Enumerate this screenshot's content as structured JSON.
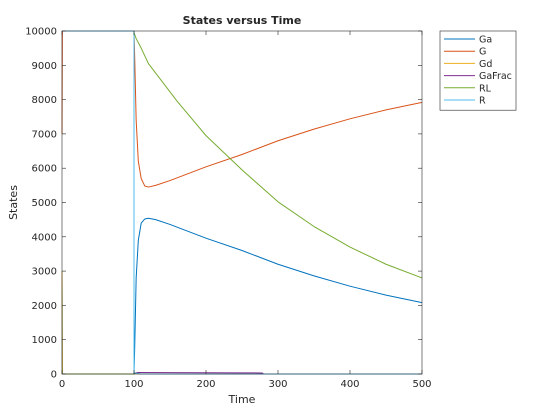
{
  "chart_data": {
    "type": "line",
    "title": "States versus Time",
    "xlabel": "Time",
    "ylabel": "States",
    "xlim": [
      0,
      500
    ],
    "ylim": [
      0,
      10000
    ],
    "xticks": [
      0,
      100,
      200,
      300,
      400,
      500
    ],
    "yticks": [
      0,
      1000,
      2000,
      3000,
      4000,
      5000,
      6000,
      7000,
      8000,
      9000,
      10000
    ],
    "grid": false,
    "legend_position": "top-right-outside",
    "series": [
      {
        "name": "Ga",
        "color": "#0072BD",
        "points": [
          [
            0,
            3000
          ],
          [
            0.5,
            0
          ],
          [
            100,
            0
          ],
          [
            101,
            800
          ],
          [
            103,
            2800
          ],
          [
            106,
            3900
          ],
          [
            110,
            4400
          ],
          [
            115,
            4520
          ],
          [
            120,
            4540
          ],
          [
            130,
            4500
          ],
          [
            150,
            4360
          ],
          [
            200,
            3960
          ],
          [
            250,
            3600
          ],
          [
            300,
            3200
          ],
          [
            350,
            2860
          ],
          [
            400,
            2560
          ],
          [
            450,
            2300
          ],
          [
            500,
            2080
          ]
        ]
      },
      {
        "name": "G",
        "color": "#D95319",
        "points": [
          [
            0,
            7000
          ],
          [
            0.5,
            10000
          ],
          [
            100,
            10000
          ],
          [
            101,
            9200
          ],
          [
            103,
            7400
          ],
          [
            106,
            6200
          ],
          [
            110,
            5700
          ],
          [
            115,
            5480
          ],
          [
            120,
            5450
          ],
          [
            130,
            5500
          ],
          [
            150,
            5640
          ],
          [
            200,
            6040
          ],
          [
            250,
            6400
          ],
          [
            300,
            6800
          ],
          [
            350,
            7140
          ],
          [
            400,
            7440
          ],
          [
            450,
            7700
          ],
          [
            500,
            7920
          ]
        ]
      },
      {
        "name": "Gd",
        "color": "#EDB120",
        "points": [
          [
            0,
            3000
          ],
          [
            0.5,
            0
          ],
          [
            100,
            0
          ],
          [
            101,
            50
          ],
          [
            103,
            20
          ],
          [
            106,
            5
          ],
          [
            110,
            0
          ],
          [
            500,
            0
          ]
        ]
      },
      {
        "name": "GaFrac",
        "color": "#7E2F8E",
        "points": [
          [
            0,
            0
          ],
          [
            100,
            0
          ],
          [
            101,
            10
          ],
          [
            103,
            30
          ],
          [
            105,
            45
          ],
          [
            110,
            45
          ],
          [
            150,
            40
          ],
          [
            200,
            36
          ],
          [
            250,
            33
          ],
          [
            278,
            31
          ],
          [
            280,
            0
          ],
          [
            500,
            0
          ]
        ]
      },
      {
        "name": "RL",
        "color": "#77AC30",
        "points": [
          [
            0,
            0
          ],
          [
            100,
            0
          ],
          [
            100,
            9950
          ],
          [
            103,
            9780
          ],
          [
            110,
            9500
          ],
          [
            120,
            9050
          ],
          [
            140,
            8500
          ],
          [
            160,
            7950
          ],
          [
            180,
            7450
          ],
          [
            200,
            6950
          ],
          [
            250,
            5950
          ],
          [
            300,
            5020
          ],
          [
            350,
            4300
          ],
          [
            400,
            3700
          ],
          [
            450,
            3200
          ],
          [
            500,
            2800
          ]
        ]
      },
      {
        "name": "R",
        "color": "#4DBEEE",
        "points": [
          [
            0,
            10000
          ],
          [
            100,
            10000
          ],
          [
            100,
            50
          ],
          [
            103,
            20
          ],
          [
            110,
            0
          ],
          [
            500,
            0
          ]
        ]
      }
    ]
  }
}
